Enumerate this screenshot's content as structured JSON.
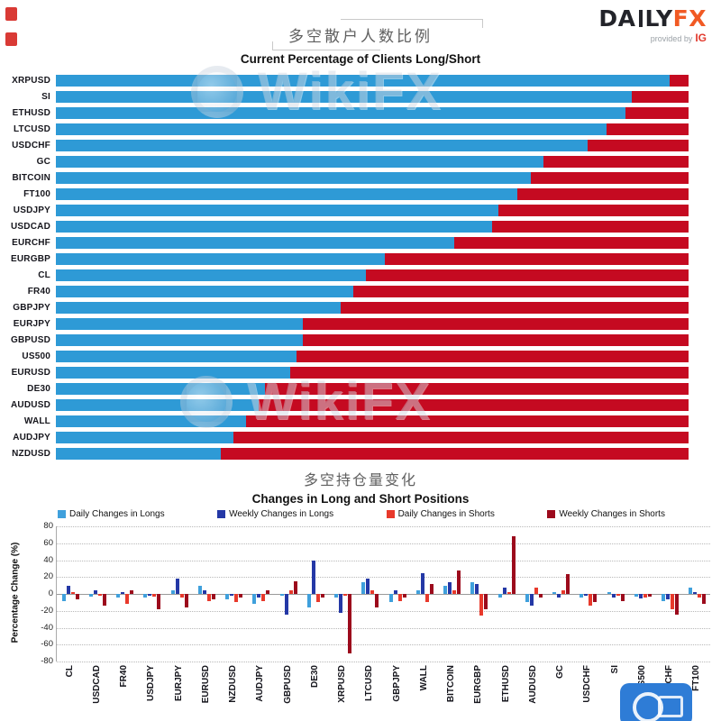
{
  "header": {
    "logo": {
      "brand_part1": "DA",
      "brand_part2": "LY",
      "brand_part3": "FX",
      "tagline": "provided by",
      "tagline_brand": "IG"
    }
  },
  "watermark": {
    "text": "WikiFX"
  },
  "chart_data": [
    {
      "type": "bar",
      "orientation": "horizontal",
      "stacked": true,
      "title_cn": "多空散户人数比例",
      "title": "Current Percentage of Clients Long/Short",
      "xlim": [
        0,
        100
      ],
      "long_color": "#2E9AD6",
      "short_color": "#C50A21",
      "rows": [
        {
          "label": "XRPUSD",
          "long": 97,
          "short": 3
        },
        {
          "label": "SI",
          "long": 91,
          "short": 9
        },
        {
          "label": "ETHUSD",
          "long": 90,
          "short": 10
        },
        {
          "label": "LTCUSD",
          "long": 87,
          "short": 13
        },
        {
          "label": "USDCHF",
          "long": 84,
          "short": 16
        },
        {
          "label": "GC",
          "long": 77,
          "short": 23
        },
        {
          "label": "BITCOIN",
          "long": 75,
          "short": 25
        },
        {
          "label": "FT100",
          "long": 73,
          "short": 27
        },
        {
          "label": "USDJPY",
          "long": 70,
          "short": 30
        },
        {
          "label": "USDCAD",
          "long": 69,
          "short": 31
        },
        {
          "label": "EURCHF",
          "long": 63,
          "short": 37
        },
        {
          "label": "EURGBP",
          "long": 52,
          "short": 48
        },
        {
          "label": "CL",
          "long": 49,
          "short": 51
        },
        {
          "label": "FR40",
          "long": 47,
          "short": 53
        },
        {
          "label": "GBPJPY",
          "long": 45,
          "short": 55
        },
        {
          "label": "EURJPY",
          "long": 39,
          "short": 61
        },
        {
          "label": "GBPUSD",
          "long": 39,
          "short": 61
        },
        {
          "label": "US500",
          "long": 38,
          "short": 62
        },
        {
          "label": "EURUSD",
          "long": 37,
          "short": 63
        },
        {
          "label": "DE30",
          "long": 33,
          "short": 67
        },
        {
          "label": "AUDUSD",
          "long": 32,
          "short": 68
        },
        {
          "label": "WALL",
          "long": 30,
          "short": 70
        },
        {
          "label": "AUDJPY",
          "long": 28,
          "short": 72
        },
        {
          "label": "NZDUSD",
          "long": 26,
          "short": 74
        }
      ]
    },
    {
      "type": "bar",
      "grouped": true,
      "title_cn": "多空持仓量变化",
      "title": "Changes in Long and Short Positions",
      "ylabel": "Percentage Change (%)",
      "ylim": [
        -80,
        80
      ],
      "yticks": [
        80,
        60,
        40,
        20,
        0,
        -20,
        -40,
        -60,
        -80
      ],
      "grid": "dotted-horizontal",
      "legend_position": "top",
      "categories": [
        "CL",
        "USDCAD",
        "FR40",
        "USDJPY",
        "EURJPY",
        "EURUSD",
        "NZDUSD",
        "AUDJPY",
        "GBPUSD",
        "DE30",
        "XRPUSD",
        "LTCUSD",
        "GBPJPY",
        "WALL",
        "BITCOIN",
        "EURGBP",
        "ETHUSD",
        "AUDUSD",
        "GC",
        "USDCHF",
        "SI",
        "US500",
        "EURCHF",
        "FT100"
      ],
      "series": [
        {
          "name": "Daily Changes in Longs",
          "color": "#3FA0DC",
          "values": [
            -8,
            -3,
            -4,
            -4,
            4,
            10,
            -6,
            -12,
            -2,
            -16,
            -4,
            14,
            -10,
            4,
            10,
            14,
            -4,
            -10,
            2,
            -4,
            2,
            -3,
            -8,
            8
          ]
        },
        {
          "name": "Weekly Changes in Longs",
          "color": "#2438A6",
          "values": [
            10,
            4,
            2,
            -2,
            18,
            4,
            -2,
            -4,
            -24,
            40,
            -22,
            18,
            4,
            25,
            14,
            12,
            8,
            -14,
            -4,
            -2,
            -4,
            -5,
            -6,
            2
          ]
        },
        {
          "name": "Daily Changes in Shorts",
          "color": "#E8392B",
          "values": [
            2,
            -2,
            -12,
            -3,
            -4,
            -8,
            -10,
            -8,
            4,
            -10,
            -2,
            4,
            -8,
            -10,
            4,
            -26,
            2,
            8,
            4,
            -14,
            -2,
            -4,
            -18,
            -4
          ]
        },
        {
          "name": "Weekly Changes in Shorts",
          "color": "#9C0A1C",
          "values": [
            -6,
            -14,
            4,
            -18,
            -16,
            -6,
            -4,
            4,
            15,
            -4,
            -70,
            -16,
            -4,
            12,
            28,
            -18,
            68,
            -4,
            24,
            -10,
            -8,
            -3,
            -24,
            -12
          ]
        }
      ]
    }
  ]
}
